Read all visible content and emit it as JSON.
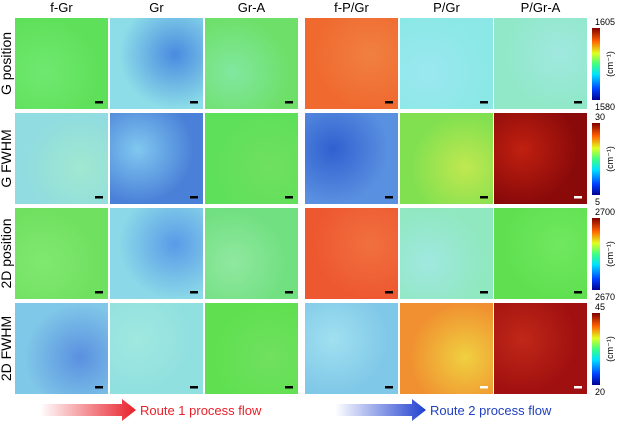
{
  "columns": [
    "f-Gr",
    "Gr",
    "Gr-A",
    "f-P/Gr",
    "P/Gr",
    "P/Gr-A"
  ],
  "rows": [
    "G position",
    "G FWHM",
    "2D position",
    "2D FWHM"
  ],
  "colorbars": [
    {
      "max": 1605,
      "min": 1580,
      "unit": "(cm⁻¹)"
    },
    {
      "max": 30,
      "min": 5,
      "unit": "(cm⁻¹)"
    },
    {
      "max": 2700,
      "min": 2670,
      "unit": "(cm⁻¹)"
    },
    {
      "max": 45,
      "min": 20,
      "unit": "(cm⁻¹)"
    }
  ],
  "routes": [
    "Route 1 process flow",
    "Route 2 process flow"
  ]
}
